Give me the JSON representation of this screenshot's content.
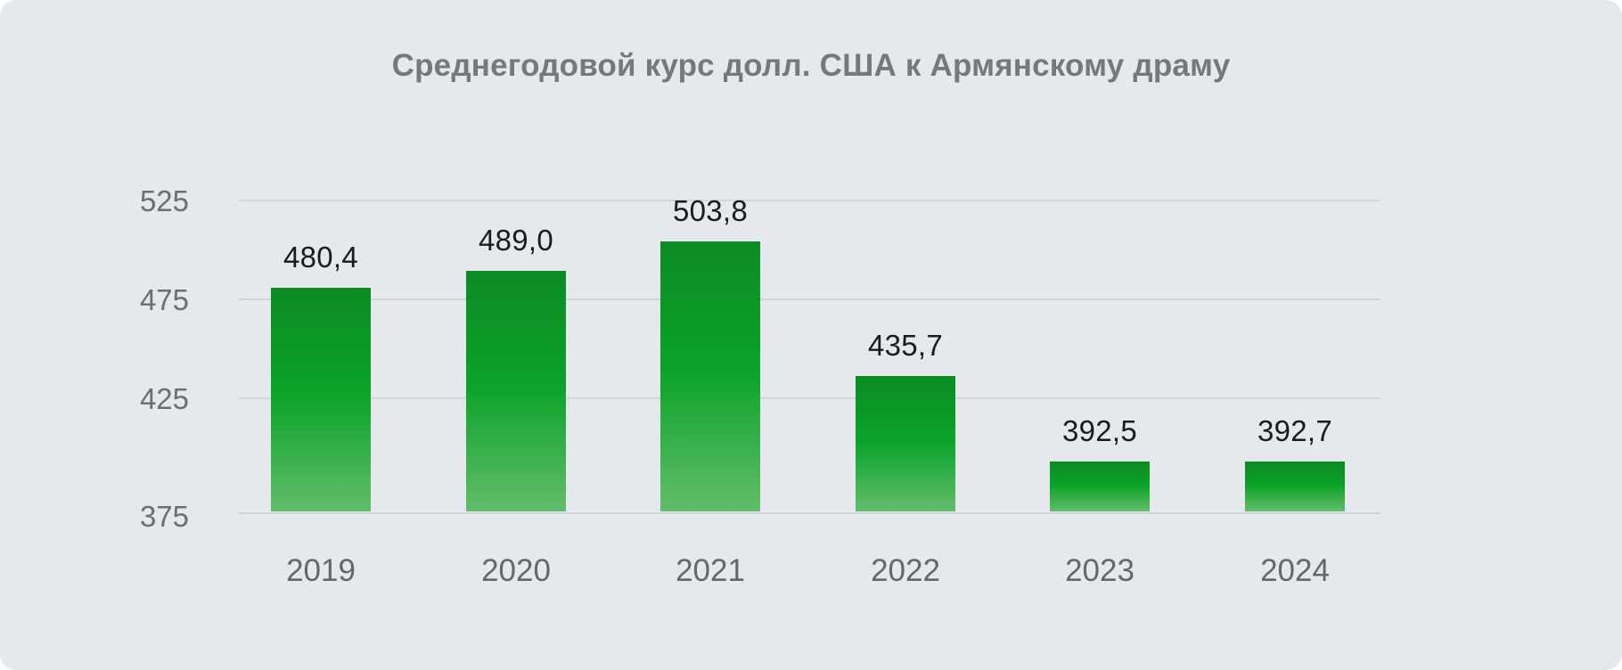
{
  "title": "Среднегодовой курс долл. США к Армянскому драму",
  "chart_data": {
    "type": "bar",
    "title": "Среднегодовой курс долл. США к Армянскому драму",
    "categories": [
      "2019",
      "2020",
      "2021",
      "2022",
      "2023",
      "2024"
    ],
    "values": [
      480.4,
      489.0,
      503.8,
      435.7,
      392.5,
      392.7
    ],
    "value_labels": [
      "480,4",
      "489,0",
      "503,8",
      "435,7",
      "392,5",
      "392,7"
    ],
    "y_ticks": [
      525,
      475,
      425,
      375
    ],
    "ylim": [
      375,
      535
    ],
    "grid": true,
    "legend": false,
    "xlabel": "",
    "ylabel": "",
    "decimal_separator": ","
  },
  "colors": {
    "card_background": "#e5e9ed",
    "bar_gradient_top": "#0c8b23",
    "bar_gradient_mid": "#0ba32a",
    "bar_gradient_bottom": "#63bd6b",
    "gridline": "#d3d6da",
    "title_text": "#75787c",
    "axis_tick_text": "#6b6e72",
    "category_text": "#64676b",
    "value_label_text": "#1a1b1d"
  }
}
